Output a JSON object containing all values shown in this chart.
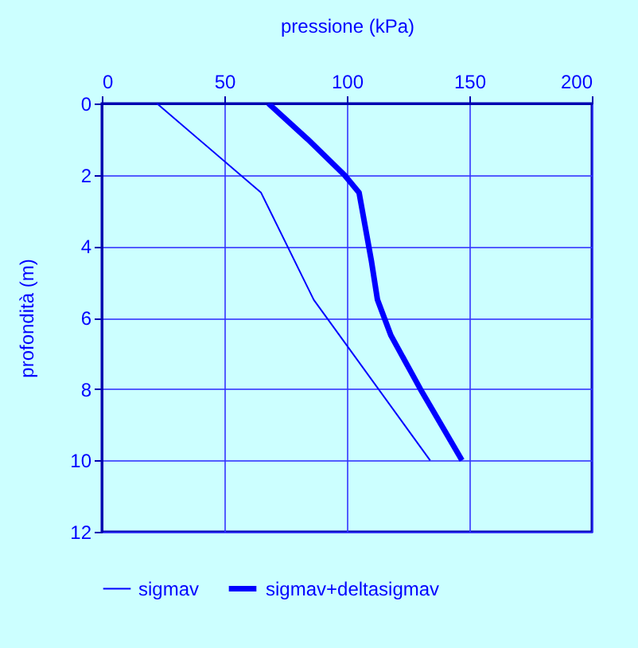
{
  "chart_data": {
    "type": "line",
    "xlabel": "pressione  (kPa)",
    "ylabel": "profondità (m)",
    "xlim": [
      0,
      200
    ],
    "xticks": [
      0,
      50,
      100,
      150,
      200
    ],
    "ylim": [
      12,
      0
    ],
    "yticks": [
      0,
      2,
      4,
      6,
      8,
      10,
      12
    ],
    "grid": true,
    "legend": "bottom",
    "series": [
      {
        "name": "sigmav",
        "color": "#0000ff",
        "x": [
          22.5,
          65,
          86.5,
          134
        ],
        "values": [
          0,
          2.5,
          5.5,
          10
        ]
      },
      {
        "name": "sigmav+deltasigmav",
        "color": "#0000ff",
        "x": [
          68,
          84,
          99,
          105,
          110,
          112.5,
          118,
          130,
          147
        ],
        "values": [
          0,
          1,
          2,
          2.5,
          4.4,
          5.5,
          6.5,
          8,
          10
        ]
      }
    ]
  }
}
